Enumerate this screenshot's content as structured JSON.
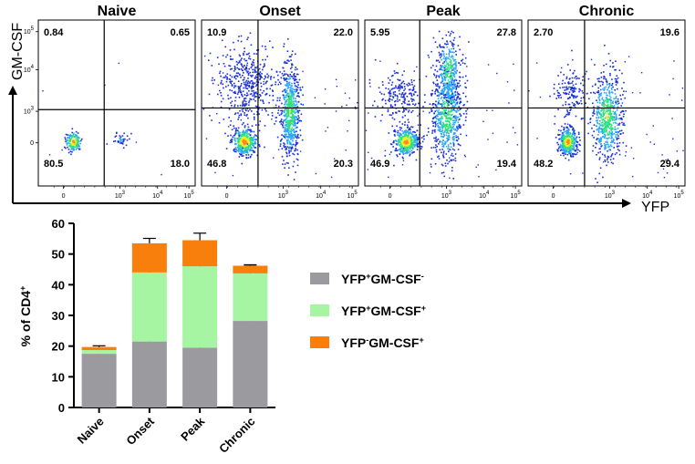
{
  "colors": {
    "yfp_pos_gm_neg": "#9b9a9f",
    "yfp_pos_gm_pos": "#a6f5a3",
    "yfp_neg_gm_pos": "#f87f0c",
    "axis": "#000000"
  },
  "chart_data": [
    {
      "type": "scatter",
      "subtype": "flow-cytometry-density-plots",
      "ylabel": "GM-CSF",
      "xlabel": "YFP",
      "y_tick_labels": [
        "10^5",
        "10^4",
        "10^3",
        "0"
      ],
      "x_tick_labels": [
        "0",
        "10^3",
        "10^4",
        "10^5"
      ],
      "panels": [
        {
          "title": "Naive",
          "quadrants": {
            "upper_left": "0.84",
            "upper_right": "0.65",
            "lower_left": "80.5",
            "lower_right": "18.0"
          }
        },
        {
          "title": "Onset",
          "quadrants": {
            "upper_left": "10.9",
            "upper_right": "22.0",
            "lower_left": "46.8",
            "lower_right": "20.3"
          }
        },
        {
          "title": "Peak",
          "quadrants": {
            "upper_left": "5.95",
            "upper_right": "27.8",
            "lower_left": "46.9",
            "lower_right": "19.4"
          }
        },
        {
          "title": "Chronic",
          "quadrants": {
            "upper_left": "2.70",
            "upper_right": "19.6",
            "lower_left": "48.2",
            "lower_right": "29.4"
          }
        }
      ]
    },
    {
      "type": "bar",
      "stacked": true,
      "categories": [
        "Naive",
        "Onset",
        "Peak",
        "Chronic"
      ],
      "ylabel_main": "% of CD4",
      "ylabel_sup": "+",
      "ylim": [
        0,
        60
      ],
      "yticks": [
        0,
        10,
        20,
        30,
        40,
        50,
        60
      ],
      "series": [
        {
          "name_parts": [
            "YFP",
            "+",
            "GM-CSF",
            "-"
          ],
          "color_key": "yfp_pos_gm_neg",
          "values": [
            17.5,
            21.5,
            19.5,
            28.2
          ],
          "errors": [
            0.8,
            0.8,
            0.5,
            2.4
          ]
        },
        {
          "name_parts": [
            "YFP",
            "+",
            "GM-CSF",
            "+"
          ],
          "color_key": "yfp_pos_gm_pos",
          "values": [
            1.2,
            22.5,
            26.5,
            15.5
          ],
          "errors": [
            0.3,
            1.0,
            1.4,
            2.4
          ]
        },
        {
          "name_parts": [
            "YFP",
            "-",
            "GM-CSF",
            "+"
          ],
          "color_key": "yfp_neg_gm_pos",
          "values": [
            1.0,
            9.5,
            8.5,
            2.5
          ],
          "errors": [
            0.4,
            1.6,
            2.3,
            0.3
          ]
        }
      ],
      "legend_position": "right"
    }
  ]
}
